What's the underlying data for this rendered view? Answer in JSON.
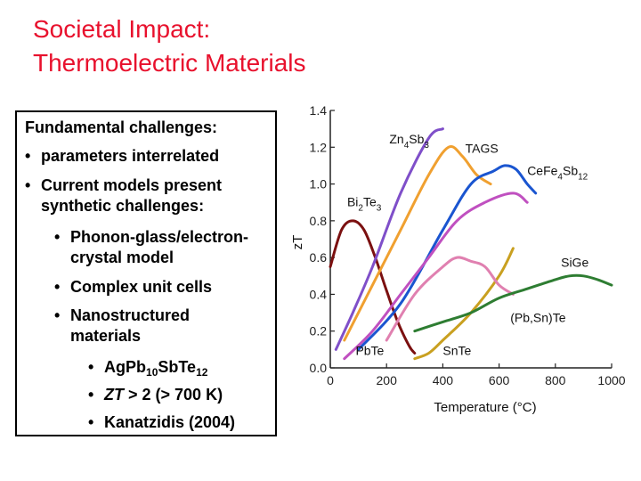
{
  "slide": {
    "title_line1": "Societal Impact:",
    "title_line2": "Thermoelectric Materials"
  },
  "box": {
    "heading": "Fundamental challenges:",
    "bullets": [
      "parameters interrelated",
      "Current models present",
      "synthetic challenges:"
    ],
    "sub_bullets": [
      "Phonon-glass/electron-",
      "crystal model",
      "Complex unit cells",
      "Nanostructured",
      "materials"
    ],
    "subsub": {
      "ag_a": "Ag",
      "pb": "Pb",
      "pb_sub": "10",
      "sbte": "Sb",
      "te12_te": "Te",
      "te12_sub": "12",
      "zt_italic": "ZT",
      "zt_rest": " > 2 (> 700 K)",
      "kanatzidis": "Kanatzidis (2004)"
    },
    "bullet_glyph": "•"
  },
  "chart_data": {
    "type": "line",
    "title": "",
    "xlabel": "Temperature (°C)",
    "ylabel": "zT",
    "xlim": [
      0,
      1000
    ],
    "ylim": [
      0,
      1.4
    ],
    "xticks": [
      "0",
      "200",
      "400",
      "600",
      "800",
      "1000"
    ],
    "yticks": [
      "0.0",
      "0.2",
      "0.4",
      "0.6",
      "0.8",
      "1.0",
      "1.2",
      "1.4"
    ],
    "series": [
      {
        "name": "Bi2Te3",
        "color": "#7b1010",
        "x": [
          0,
          40,
          80,
          120,
          160,
          200,
          240,
          280,
          300
        ],
        "y": [
          0.55,
          0.75,
          0.8,
          0.75,
          0.6,
          0.42,
          0.25,
          0.12,
          0.08
        ]
      },
      {
        "name": "Zn4Sb3",
        "color": "#7f4fc9",
        "x": [
          20,
          80,
          150,
          250,
          350,
          400
        ],
        "y": [
          0.1,
          0.3,
          0.55,
          0.95,
          1.25,
          1.3
        ]
      },
      {
        "name": "TAGS",
        "color": "#f0a030",
        "x": [
          50,
          150,
          250,
          350,
          420,
          470,
          520,
          570
        ],
        "y": [
          0.15,
          0.45,
          0.75,
          1.05,
          1.2,
          1.15,
          1.05,
          1.0
        ]
      },
      {
        "name": "CeFe4Sb12",
        "color": "#1a55d0",
        "x": [
          100,
          250,
          400,
          500,
          580,
          620,
          660,
          700,
          730
        ],
        "y": [
          0.1,
          0.35,
          0.75,
          1.0,
          1.07,
          1.1,
          1.08,
          1.0,
          0.95
        ]
      },
      {
        "name": "PbTe",
        "color": "#c050c0",
        "x": [
          50,
          150,
          250,
          350,
          450,
          550,
          650,
          700
        ],
        "y": [
          0.05,
          0.2,
          0.4,
          0.6,
          0.8,
          0.9,
          0.95,
          0.9
        ]
      },
      {
        "name": "SnTe",
        "color": "#c9a020",
        "x": [
          300,
          350,
          400,
          500,
          600,
          650
        ],
        "y": [
          0.05,
          0.08,
          0.15,
          0.3,
          0.5,
          0.65
        ]
      },
      {
        "name": "(Pb,Sn)Te",
        "color": "#e080b0",
        "x": [
          200,
          300,
          400,
          450,
          500,
          550,
          600,
          650
        ],
        "y": [
          0.15,
          0.4,
          0.55,
          0.6,
          0.58,
          0.55,
          0.45,
          0.4
        ]
      },
      {
        "name": "SiGe",
        "color": "#2e7d32",
        "x": [
          300,
          400,
          500,
          600,
          700,
          800,
          850,
          900,
          950,
          1000
        ],
        "y": [
          0.2,
          0.25,
          0.3,
          0.38,
          0.43,
          0.48,
          0.5,
          0.5,
          0.48,
          0.45
        ]
      }
    ],
    "labels": [
      {
        "text": "Zn",
        "sub": "4",
        "text2": "Sb",
        "sub2": "3",
        "x": 210,
        "y": 1.22
      },
      {
        "text": "TAGS",
        "sub": "",
        "text2": "",
        "sub2": "",
        "x": 480,
        "y": 1.17
      },
      {
        "text": "CeFe",
        "sub": "4",
        "text2": "Sb",
        "sub2": "12",
        "x": 700,
        "y": 1.05
      },
      {
        "text": "Bi",
        "sub": "2",
        "text2": "Te",
        "sub2": "3",
        "x": 60,
        "y": 0.88
      },
      {
        "text": "SiGe",
        "sub": "",
        "text2": "",
        "sub2": "",
        "x": 820,
        "y": 0.55
      },
      {
        "text": "(Pb,Sn)Te",
        "sub": "",
        "text2": "",
        "sub2": "",
        "x": 640,
        "y": 0.25
      },
      {
        "text": "PbTe",
        "sub": "",
        "text2": "",
        "sub2": "",
        "x": 90,
        "y": 0.07
      },
      {
        "text": "SnTe",
        "sub": "",
        "text2": "",
        "sub2": "",
        "x": 400,
        "y": 0.07
      }
    ]
  }
}
